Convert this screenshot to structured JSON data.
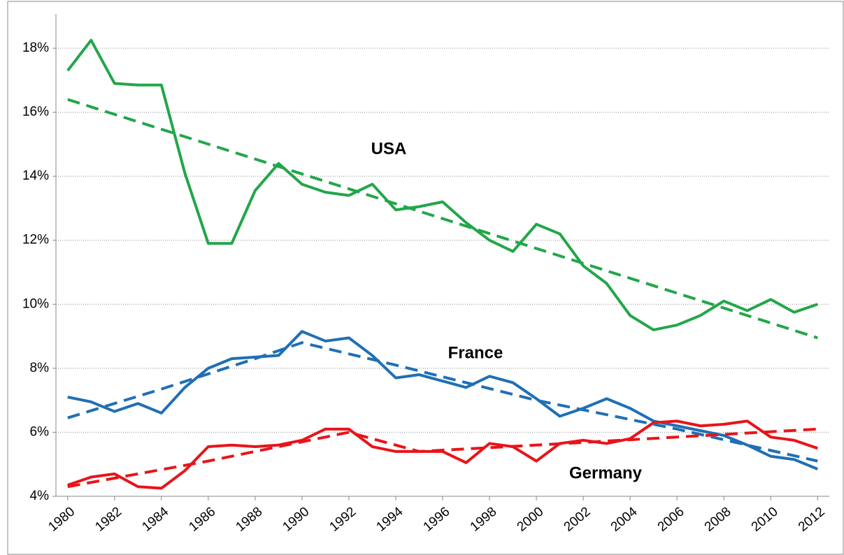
{
  "chart_data": {
    "type": "line",
    "x": [
      1980,
      1981,
      1982,
      1983,
      1984,
      1985,
      1986,
      1987,
      1988,
      1989,
      1990,
      1991,
      1992,
      1993,
      1994,
      1995,
      1996,
      1997,
      1998,
      1999,
      2000,
      2001,
      2002,
      2003,
      2004,
      2005,
      2006,
      2007,
      2008,
      2009,
      2010,
      2011,
      2012
    ],
    "series": [
      {
        "name": "USA",
        "color": "#22a64a",
        "values": [
          17.3,
          18.25,
          16.9,
          16.85,
          16.85,
          14.1,
          11.9,
          11.9,
          13.55,
          14.4,
          13.75,
          13.5,
          13.4,
          13.75,
          12.95,
          13.05,
          13.2,
          12.55,
          12.0,
          11.65,
          12.5,
          12.2,
          11.2,
          10.65,
          9.65,
          9.2,
          9.35,
          9.65,
          10.1,
          9.8,
          10.15,
          9.75,
          10.0
        ]
      },
      {
        "name": "France",
        "color": "#1f6fb5",
        "label_color": "#5b8fd6",
        "values": [
          7.1,
          6.95,
          6.65,
          6.9,
          6.6,
          7.4,
          8.0,
          8.3,
          8.35,
          8.4,
          9.15,
          8.85,
          8.95,
          8.4,
          7.7,
          7.8,
          7.6,
          7.4,
          7.75,
          7.55,
          7.05,
          6.5,
          6.75,
          7.05,
          6.75,
          6.35,
          6.2,
          6.05,
          5.9,
          5.6,
          5.25,
          5.15,
          4.85
        ]
      },
      {
        "name": "Germany",
        "color": "#e8141a",
        "values": [
          4.35,
          4.6,
          4.7,
          4.3,
          4.25,
          4.8,
          5.55,
          5.6,
          5.55,
          5.6,
          5.75,
          6.1,
          6.1,
          5.55,
          5.4,
          5.4,
          5.4,
          5.05,
          5.65,
          5.55,
          5.1,
          5.65,
          5.75,
          5.65,
          5.8,
          6.3,
          6.35,
          6.2,
          6.25,
          6.35,
          5.85,
          5.75,
          5.5
        ]
      },
      {
        "color": "#22a64a",
        "dash": true,
        "x": [
          1980,
          2012
        ],
        "values": [
          16.4,
          8.95
        ]
      },
      {
        "color": "#1f6fb5",
        "dash": true,
        "x": [
          1980,
          1984,
          1988,
          1990,
          1994,
          2000,
          2006,
          2012
        ],
        "values": [
          6.45,
          7.35,
          8.3,
          8.8,
          8.1,
          7.0,
          6.1,
          5.1
        ]
      },
      {
        "color": "#e8141a",
        "dash": true,
        "x": [
          1980,
          1986,
          1992,
          1995,
          2000,
          2006,
          2012
        ],
        "values": [
          4.3,
          5.1,
          6.0,
          5.4,
          5.6,
          5.85,
          6.1
        ]
      }
    ],
    "xlim": [
      1979.5,
      2012.5
    ],
    "xticks": [
      1980,
      1982,
      1984,
      1986,
      1988,
      1990,
      1992,
      1994,
      1996,
      1998,
      2000,
      2002,
      2004,
      2006,
      2008,
      2010,
      2012
    ],
    "ylim": [
      4,
      19.07
    ],
    "yticks": [
      {
        "value": 4,
        "label": "4%"
      },
      {
        "value": 6,
        "label": "6%"
      },
      {
        "value": 8,
        "label": "8%"
      },
      {
        "value": 10,
        "label": "10%"
      },
      {
        "value": 12,
        "label": "12%"
      },
      {
        "value": 14,
        "label": "14%"
      },
      {
        "value": 16,
        "label": "16%"
      },
      {
        "value": 18,
        "label": "18%"
      }
    ],
    "grid": true
  }
}
